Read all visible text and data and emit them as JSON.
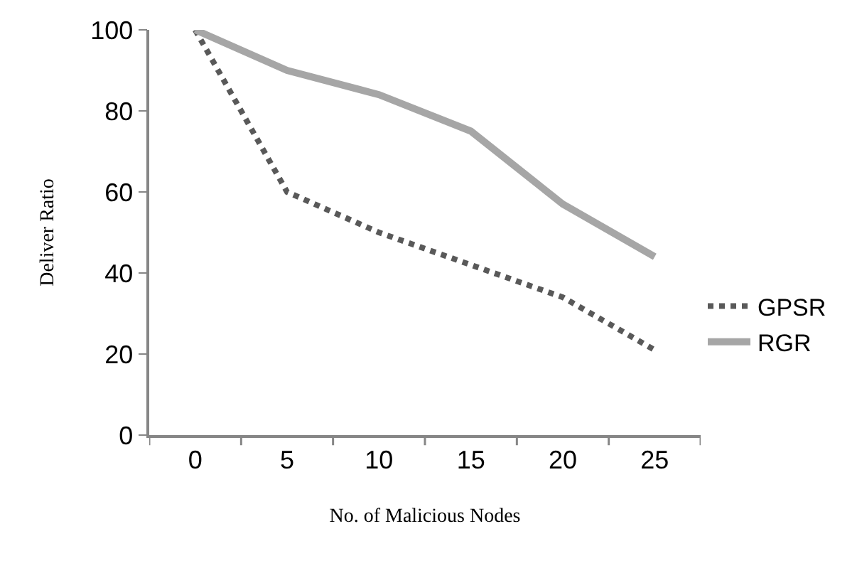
{
  "chart_data": {
    "type": "line",
    "xlabel": "No. of Malicious Nodes",
    "ylabel": "Deliver Ratio",
    "categories": [
      "0",
      "5",
      "10",
      "15",
      "20",
      "25"
    ],
    "series": [
      {
        "name": "GPSR",
        "color": "#595959",
        "line_style": "dotted",
        "values": [
          100,
          60,
          50,
          42,
          34,
          21
        ]
      },
      {
        "name": "RGR",
        "color": "#a6a6a6",
        "line_style": "solid",
        "values": [
          100,
          90,
          84,
          75,
          57,
          44
        ]
      }
    ],
    "ylim": [
      0,
      100
    ],
    "yticks": [
      0,
      20,
      40,
      60,
      80,
      100
    ],
    "grid": false,
    "legend": "right",
    "marker": "none"
  }
}
